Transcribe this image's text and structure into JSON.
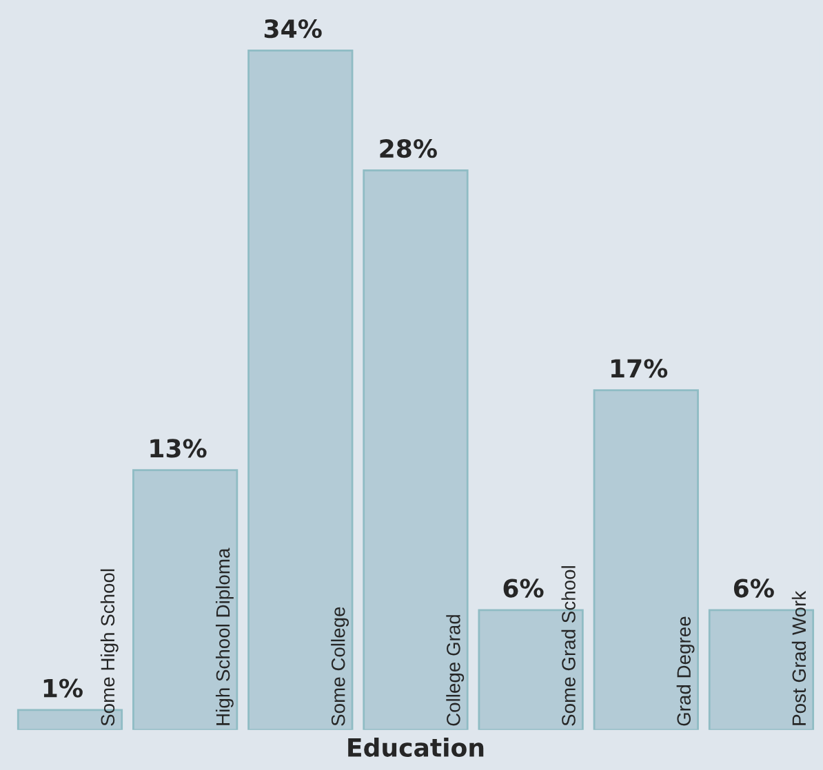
{
  "chart_data": {
    "type": "bar",
    "xlabel": "Education",
    "categories": [
      "Some High School",
      "High School Diploma",
      "Some College",
      "College Grad",
      "Some Grad School",
      "Grad Degree",
      "Post Grad Work"
    ],
    "values": [
      1,
      13,
      34,
      28,
      6,
      17,
      6
    ],
    "value_labels": [
      "1%",
      "13%",
      "34%",
      "28%",
      "6%",
      "17%",
      "6%"
    ],
    "color": "#b3cbd6"
  }
}
